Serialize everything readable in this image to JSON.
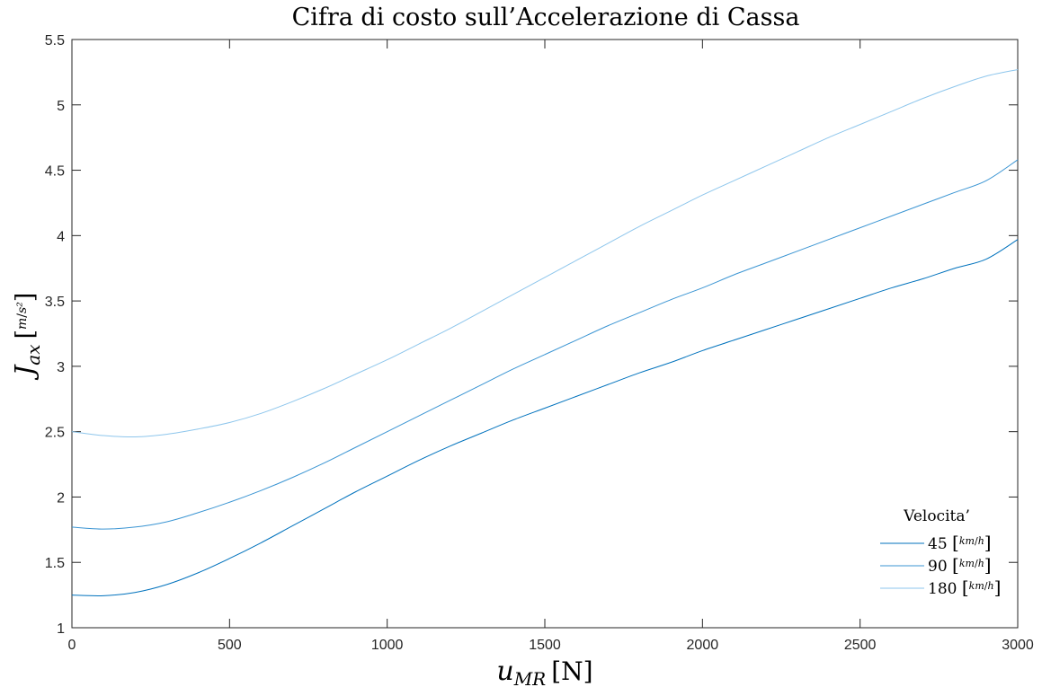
{
  "chart_data": {
    "type": "line",
    "title": "Cifra di costo sull’Accelerazione di Cassa",
    "xlabel": {
      "symbol": "u",
      "subscript": "MR",
      "unit": "[N]"
    },
    "ylabel": {
      "symbol": "J",
      "subscript": "ax",
      "unit_num": "m",
      "unit_den": "s²"
    },
    "xlim": [
      0,
      3000
    ],
    "ylim": [
      1,
      5.5
    ],
    "xticks": [
      0,
      500,
      1000,
      1500,
      2000,
      2500,
      3000
    ],
    "xtick_labels": [
      "0",
      "500",
      "1000",
      "1500",
      "2000",
      "2500",
      "3000"
    ],
    "yticks": [
      1,
      1.5,
      2,
      2.5,
      3,
      3.5,
      4,
      4.5,
      5,
      5.5
    ],
    "ytick_labels": [
      "1",
      "1.5",
      "2",
      "2.5",
      "3",
      "3.5",
      "4",
      "4.5",
      "5",
      "5.5"
    ],
    "grid": false,
    "legend": {
      "title": "Velocita’",
      "placement": "bottom-right",
      "unit_num": "km",
      "unit_den": "h"
    },
    "x": [
      0,
      100,
      200,
      300,
      400,
      500,
      600,
      700,
      800,
      900,
      1000,
      1100,
      1200,
      1300,
      1400,
      1500,
      1600,
      1700,
      1800,
      1900,
      2000,
      2100,
      2200,
      2300,
      2400,
      2500,
      2600,
      2700,
      2800,
      2900,
      3000
    ],
    "series": [
      {
        "name": "45",
        "color": "#0072BD",
        "values": [
          1.25,
          1.245,
          1.27,
          1.33,
          1.42,
          1.53,
          1.65,
          1.78,
          1.91,
          2.04,
          2.16,
          2.28,
          2.39,
          2.49,
          2.59,
          2.68,
          2.77,
          2.86,
          2.95,
          3.03,
          3.12,
          3.2,
          3.28,
          3.36,
          3.44,
          3.52,
          3.6,
          3.67,
          3.75,
          3.82,
          3.97
        ]
      },
      {
        "name": "90",
        "color": "#3B95D3",
        "values": [
          1.77,
          1.755,
          1.77,
          1.81,
          1.88,
          1.96,
          2.05,
          2.15,
          2.26,
          2.38,
          2.5,
          2.62,
          2.74,
          2.86,
          2.98,
          3.09,
          3.2,
          3.31,
          3.41,
          3.51,
          3.6,
          3.7,
          3.79,
          3.88,
          3.97,
          4.06,
          4.15,
          4.24,
          4.33,
          4.42,
          4.58
        ]
      },
      {
        "name": "180",
        "color": "#8EC6EC",
        "values": [
          2.5,
          2.47,
          2.46,
          2.48,
          2.52,
          2.57,
          2.64,
          2.73,
          2.83,
          2.94,
          3.05,
          3.17,
          3.29,
          3.42,
          3.55,
          3.68,
          3.81,
          3.94,
          4.07,
          4.19,
          4.31,
          4.42,
          4.53,
          4.64,
          4.75,
          4.85,
          4.95,
          5.05,
          5.14,
          5.22,
          5.27
        ]
      }
    ]
  }
}
